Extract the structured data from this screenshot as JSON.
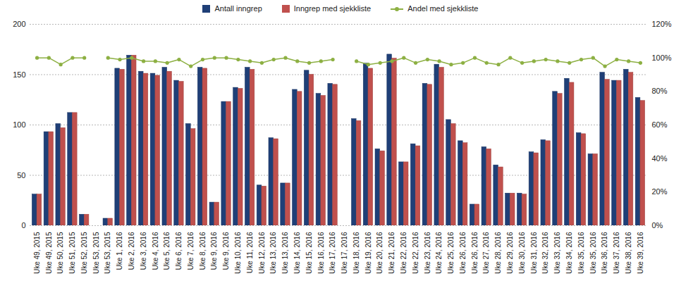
{
  "chart_data": {
    "type": "bar",
    "categories": [
      "Uke 49, 2015",
      "Uke 49, 2015",
      "Uke 50, 2015",
      "Uke 51, 2015",
      "Uke 52, 2015",
      "Uke 53, 2015",
      "Uke 53, 2015",
      "Uke 1, 2016",
      "Uke 2, 2016",
      "Uke 3, 2016",
      "Uke 4, 2016",
      "Uke 5, 2016",
      "Uke 6, 2016",
      "Uke 7, 2016",
      "Uke 8, 2016",
      "Uke 9, 2016",
      "Uke 9, 2016",
      "Uke 10, 2016",
      "Uke 11, 2016",
      "Uke 12, 2016",
      "Uke 13, 2016",
      "Uke 13, 2016",
      "Uke 14, 2016",
      "Uke 15, 2016",
      "Uke 16, 2016",
      "Uke 17, 2016",
      "Uke 17, 2016",
      "Uke 18, 2016",
      "Uke 19, 2016",
      "Uke 20, 2016",
      "Uke 21, 2016",
      "Uke 22, 2016",
      "Uke 22, 2016",
      "Uke 23, 2016",
      "Uke 24, 2016",
      "Uke 25, 2016",
      "Uke 26, 2016",
      "Uke 26, 2016",
      "Uke 27, 2016",
      "Uke 28, 2016",
      "Uke 29, 2016",
      "Uke 30, 2016",
      "Uke 31, 2016",
      "Uke 32, 2016",
      "Uke 33, 2016",
      "Uke 34, 2016",
      "Uke 35, 2016",
      "Uke 35, 2016",
      "Uke 36, 2016",
      "Uke 37, 2016",
      "Uke 38, 2016",
      "Uke 39, 2016"
    ],
    "series": [
      {
        "name": "Antall inngrep",
        "color": "#1f3f77",
        "type": "bar",
        "values": [
          31,
          93,
          101,
          112,
          11,
          null,
          7,
          156,
          169,
          153,
          151,
          157,
          144,
          101,
          157,
          23,
          123,
          137,
          157,
          40,
          87,
          42,
          135,
          154,
          131,
          141,
          null,
          106,
          161,
          76,
          170,
          63,
          81,
          141,
          160,
          105,
          84,
          21,
          78,
          60,
          32,
          32,
          73,
          85,
          133,
          146,
          92,
          71,
          152,
          144,
          155,
          127
        ]
      },
      {
        "name": "Inngrep med sjekkliste",
        "color": "#c0504d",
        "type": "bar",
        "values": [
          31,
          93,
          97,
          112,
          11,
          null,
          7,
          155,
          169,
          151,
          149,
          153,
          143,
          96,
          156,
          23,
          123,
          136,
          155,
          39,
          86,
          42,
          133,
          150,
          129,
          140,
          null,
          104,
          156,
          74,
          166,
          63,
          79,
          140,
          157,
          101,
          82,
          21,
          76,
          58,
          32,
          31,
          72,
          84,
          131,
          142,
          91,
          71,
          145,
          144,
          152,
          124
        ]
      },
      {
        "name": "Andel med sjekkliste",
        "color": "#8db043",
        "type": "line",
        "marker": "circle",
        "axis": "y2",
        "values": [
          100,
          100,
          96,
          100,
          100,
          null,
          100,
          99,
          100,
          98,
          98,
          97,
          99,
          95,
          99,
          100,
          100,
          99,
          98,
          97,
          99,
          100,
          98,
          97,
          98,
          99,
          null,
          98,
          96,
          97,
          98,
          100,
          97,
          99,
          98,
          96,
          97,
          100,
          97,
          96,
          100,
          97,
          98,
          99,
          98,
          97,
          99,
          100,
          95,
          99,
          98,
          97
        ]
      }
    ],
    "ylim": [
      0,
      200
    ],
    "yticks": [
      0,
      50,
      100,
      150,
      200
    ],
    "y2lim": [
      0,
      120
    ],
    "y2ticks": [
      {
        "value": 0,
        "label": "0%"
      },
      {
        "value": 20,
        "label": "20%"
      },
      {
        "value": 40,
        "label": "40%"
      },
      {
        "value": 60,
        "label": "60%"
      },
      {
        "value": 80,
        "label": "80%"
      },
      {
        "value": 100,
        "label": "100%"
      },
      {
        "value": 120,
        "label": "120%"
      }
    ],
    "grid": true,
    "legend": "top"
  }
}
